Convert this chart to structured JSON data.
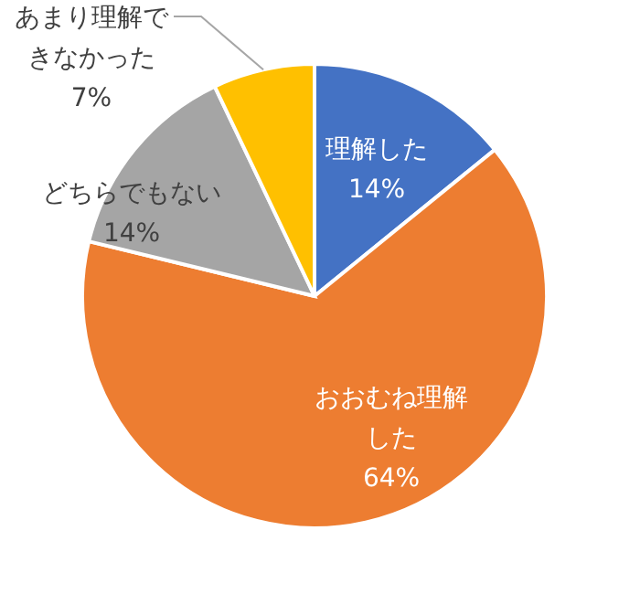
{
  "chart_data": {
    "type": "pie",
    "categories": [
      "理解した",
      "おおむね理解した",
      "どちらでもない",
      "あまり理解できなかった"
    ],
    "values": [
      14,
      64,
      14,
      7
    ],
    "colors": [
      "#4472c4",
      "#ed7d31",
      "#a5a5a5",
      "#ffc000"
    ],
    "value_labels": [
      "14%",
      "64%",
      "14%",
      "7%"
    ]
  }
}
